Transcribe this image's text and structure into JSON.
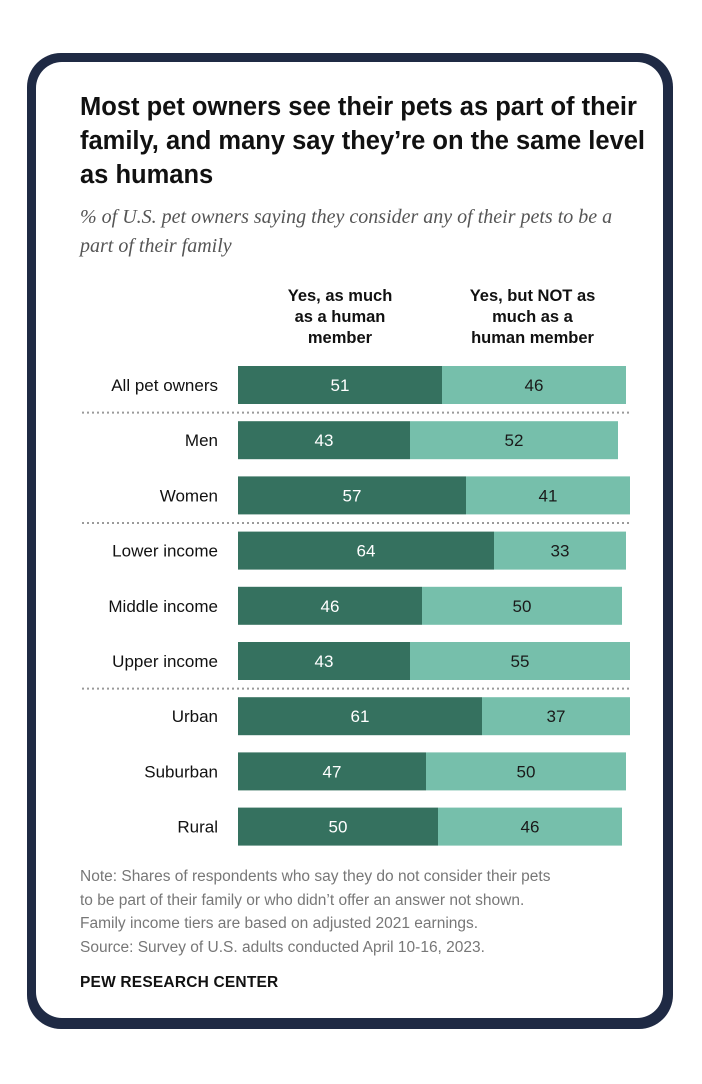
{
  "title": "Most pet owners see their pets as part of their family, and many say they’re on the same level as humans",
  "subtitle": "% of U.S. pet owners saying they consider any of their pets to be a part of their family",
  "colors": {
    "frame": "#1f2a44",
    "series1": "#35715f",
    "series2": "#76bfab",
    "series1_text": "#ffffff",
    "series2_text": "#1a1a1a"
  },
  "chart_data": {
    "type": "bar",
    "orientation": "horizontal",
    "stacked": true,
    "categories": [
      "All pet owners",
      "Men",
      "Women",
      "Lower income",
      "Middle income",
      "Upper income",
      "Urban",
      "Suburban",
      "Rural"
    ],
    "groups": [
      [
        "All pet owners"
      ],
      [
        "Men",
        "Women"
      ],
      [
        "Lower income",
        "Middle income",
        "Upper income"
      ],
      [
        "Urban",
        "Suburban",
        "Rural"
      ]
    ],
    "series": [
      {
        "name": "Yes, as much\nas a human\nmember",
        "values": [
          51,
          43,
          57,
          64,
          46,
          43,
          61,
          47,
          50
        ]
      },
      {
        "name": "Yes, but NOT as\nmuch as a\nhuman member",
        "values": [
          46,
          52,
          41,
          33,
          50,
          55,
          37,
          50,
          46
        ]
      }
    ],
    "xlim": [
      0,
      100
    ],
    "data_labels": true,
    "grid": false
  },
  "note": "Note: Shares of respondents who say they do not consider their pets\nto be part of their family or who didn’t offer an answer not shown.\nFamily income tiers are based on adjusted 2021 earnings.\nSource: Survey of U.S. adults conducted April 10-16, 2023.",
  "brand": "PEW RESEARCH CENTER"
}
